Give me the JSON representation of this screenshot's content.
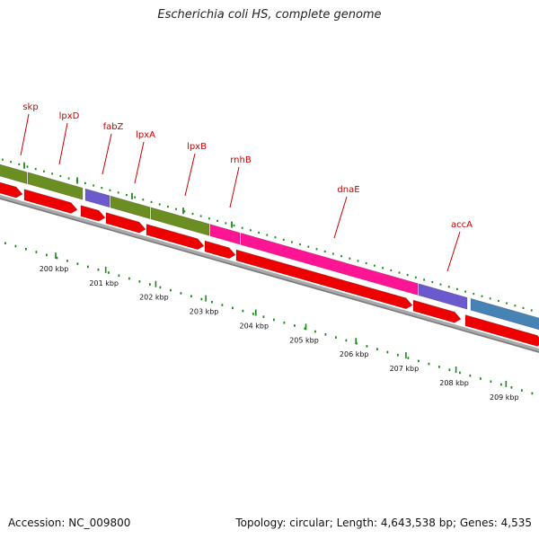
{
  "title": "Escherichia coli HS, complete genome",
  "footer": {
    "accession_label": "Accession:",
    "accession": "NC_009800",
    "topology_label": "Topology:",
    "topology": "circular",
    "length_label": "Length:",
    "length": "4,643,538 bp",
    "genes_label": "Genes:",
    "genes": "4,535"
  },
  "colors": {
    "backbone": "#7a7a7a",
    "cds": "#ee0000",
    "tick": "#1a8a1a",
    "label": "#cc0000",
    "olive": "#6b8e23",
    "purple": "#6a5acd",
    "magenta": "#ff1493",
    "steelblue": "#4682b4"
  },
  "kbp_labels": [
    "200 kbp",
    "201 kbp",
    "202 kbp",
    "203 kbp",
    "204 kbp",
    "205 kbp",
    "206 kbp",
    "207 kbp",
    "208 kbp",
    "209 kbp"
  ],
  "genes": [
    {
      "name": "skp"
    },
    {
      "name": "lpxD"
    },
    {
      "name": "fabZ"
    },
    {
      "name": "lpxA"
    },
    {
      "name": "lpxB"
    },
    {
      "name": "rnhB"
    },
    {
      "name": "dnaE"
    },
    {
      "name": "accA"
    }
  ]
}
